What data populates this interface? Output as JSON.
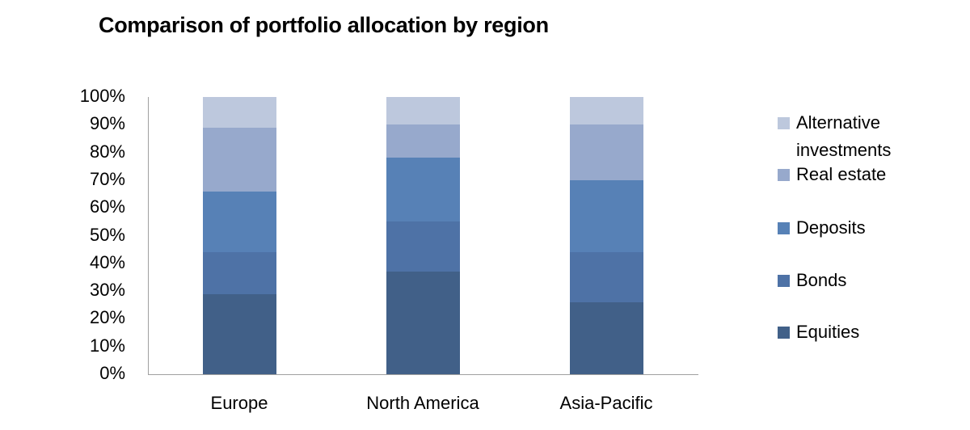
{
  "chart_data": {
    "type": "bar",
    "stacked": true,
    "percent": true,
    "title": "Comparison of portfolio allocation by region",
    "xlabel": "",
    "ylabel": "",
    "ylim": [
      0,
      100
    ],
    "yticks": [
      "0%",
      "10%",
      "20%",
      "30%",
      "40%",
      "50%",
      "60%",
      "70%",
      "80%",
      "90%",
      "100%"
    ],
    "categories": [
      "Europe",
      "North America",
      "Asia-Pacific"
    ],
    "series": [
      {
        "name": "Equities",
        "color": "#416088",
        "values": [
          29,
          37,
          26
        ]
      },
      {
        "name": "Bonds",
        "color": "#4e72a6",
        "values": [
          15,
          18,
          18
        ]
      },
      {
        "name": "Deposits",
        "color": "#5781b6",
        "values": [
          22,
          23,
          26
        ]
      },
      {
        "name": "Real estate",
        "color": "#97a9cc",
        "values": [
          23,
          12,
          20
        ]
      },
      {
        "name": "Alternative investments",
        "color": "#bdc8dd",
        "values": [
          11,
          10,
          10
        ]
      }
    ],
    "legend_position": "right",
    "grid": false
  },
  "legend_order": [
    "Alternative investments",
    "Real estate",
    "Deposits",
    "Bonds",
    "Equities"
  ]
}
